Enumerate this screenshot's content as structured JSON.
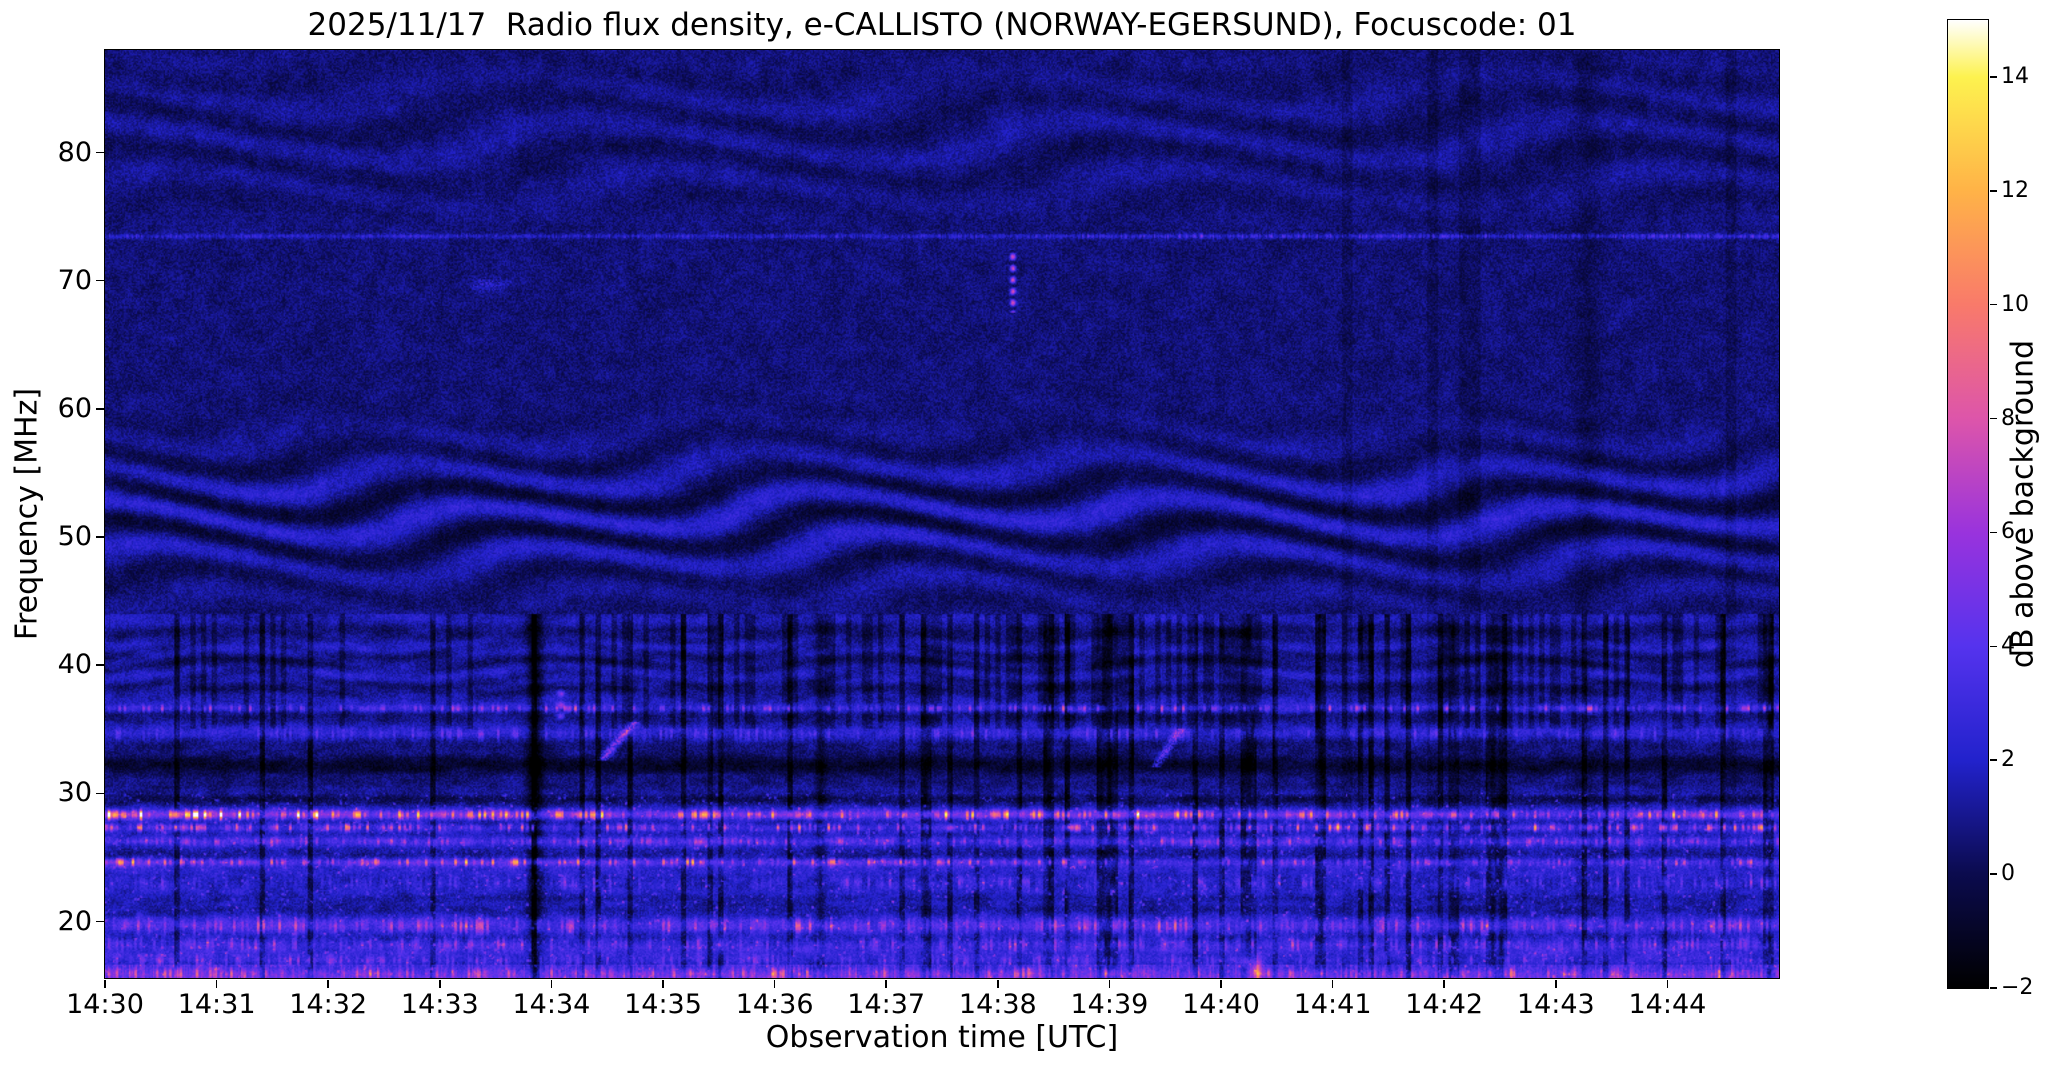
{
  "chart_data": {
    "type": "heatmap",
    "title": "2025/11/17  Radio flux density, e-CALLISTO (NORWAY-EGERSUND), Focuscode: 01",
    "xlabel": "Observation time [UTC]",
    "ylabel": "Frequency [MHz]",
    "x_ticks": [
      "14:30",
      "14:31",
      "14:32",
      "14:33",
      "14:34",
      "14:35",
      "14:36",
      "14:37",
      "14:38",
      "14:39",
      "14:40",
      "14:41",
      "14:42",
      "14:43",
      "14:44"
    ],
    "x_minutes_span": 15,
    "time_range": [
      "14:30:00",
      "14:45:00"
    ],
    "y_ticks": [
      80,
      70,
      60,
      50,
      40,
      30,
      20
    ],
    "freq_range": [
      15.6,
      88.0
    ],
    "grid": false,
    "colorbar": {
      "label": "dB above background",
      "range": [
        -2,
        15
      ],
      "ticks": [
        14,
        12,
        10,
        8,
        6,
        4,
        2,
        0,
        -2
      ],
      "tick_labels": [
        "14",
        "12",
        "10",
        "8",
        "6",
        "4",
        "2",
        "0",
        "−2"
      ]
    },
    "colormap": [
      {
        "pos": 0.0,
        "color": "#000000"
      },
      {
        "pos": 0.118,
        "color": "#0b0b4e"
      },
      {
        "pos": 0.235,
        "color": "#2222cc"
      },
      {
        "pos": 0.353,
        "color": "#5533ee"
      },
      {
        "pos": 0.47,
        "color": "#9933dd"
      },
      {
        "pos": 0.588,
        "color": "#dd55aa"
      },
      {
        "pos": 0.706,
        "color": "#f97a6a"
      },
      {
        "pos": 0.824,
        "color": "#ffb347"
      },
      {
        "pos": 0.941,
        "color": "#fdf24f"
      },
      {
        "pos": 1.0,
        "color": "#ffffff"
      }
    ],
    "background_level_db": 0.6,
    "wavy_interference_band_mhz": [
      44,
      58
    ],
    "upper_wavy_band_mhz": [
      74,
      88
    ],
    "interference_lines_mhz": [
      73.5,
      36.6,
      28.3,
      27.3,
      24.6
    ],
    "bands": [
      {
        "f": 36.6,
        "a": 3.2,
        "w": 0.28
      },
      {
        "f": 34.6,
        "a": 1.5,
        "w": 0.5
      },
      {
        "f": 28.3,
        "a": 6.0,
        "w": 0.33,
        "lf": 1
      },
      {
        "f": 27.3,
        "a": 4.5,
        "w": 0.3
      },
      {
        "f": 26.2,
        "a": 2.4,
        "w": 0.3
      },
      {
        "f": 24.6,
        "a": 4.2,
        "w": 0.28,
        "lf": 1
      },
      {
        "f": 23.0,
        "a": 1.8,
        "w": 0.5
      },
      {
        "f": 19.6,
        "a": 2.8,
        "w": 0.6
      },
      {
        "f": 18.2,
        "a": 2.2,
        "w": 0.5
      },
      {
        "f": 16.9,
        "a": 2.0,
        "w": 0.4
      },
      {
        "f": 15.9,
        "a": 2.6,
        "w": 0.45
      }
    ],
    "dark_bands": [
      {
        "f": 32.4,
        "a": 2.3,
        "w": 0.8
      },
      {
        "f": 30.7,
        "a": 1.2,
        "w": 0.5
      },
      {
        "f": 29.5,
        "a": 1.0,
        "w": 0.45
      },
      {
        "f": 21.8,
        "a": 1.0,
        "w": 0.4
      }
    ],
    "dark_columns": [
      {
        "t": 0.2565,
        "sigma": 0.0045,
        "amp": 2.6,
        "fMax": 44
      },
      {
        "t": 0.427,
        "sigma": 0.003,
        "amp": 1.5,
        "fMax": 44
      },
      {
        "t": 0.885,
        "sigma": 0.008,
        "amp": 0.55,
        "fMax": 88
      }
    ],
    "events": [
      {
        "kind": "vertical",
        "t": 0.542,
        "fLo": 67.5,
        "fHi": 72.5,
        "amp": 7.5,
        "sigmaT": 0.0016,
        "desc": "bright narrow transient near 14:38, 68-72 MHz"
      },
      {
        "kind": "vertical",
        "t": 0.272,
        "fLo": 35.5,
        "fHi": 38.5,
        "amp": 4.0,
        "sigmaT": 0.002,
        "desc": "bright spike just before 14:34 near 37 MHz"
      },
      {
        "kind": "drift",
        "tStart": 0.296,
        "fLo": 32.5,
        "fHi": 35.5,
        "driftPerMHz": 0.0065,
        "amp": 5.5,
        "sigmaT": 0.0028,
        "desc": "drifting burst chain 14:34.5, 33-35 MHz"
      },
      {
        "kind": "drift",
        "tStart": 0.627,
        "fLo": 32.0,
        "fHi": 35.0,
        "driftPerMHz": 0.005,
        "amp": 4.2,
        "sigmaT": 0.0028,
        "desc": "drifting burst chain 14:39.4, 32-35 MHz"
      },
      {
        "kind": "smear",
        "t": 0.228,
        "f": 69.8,
        "amp": 2.6,
        "sigmaT": 0.013,
        "sigmaF": 0.55,
        "desc": "faint enhancement 14:33.4 near 70 MHz"
      },
      {
        "kind": "blob",
        "t": 0.687,
        "f": 16.2,
        "amp": 6.0,
        "sigmaT": 0.004,
        "sigmaF": 0.9,
        "desc": "bright low-frequency spike 14:40.3"
      }
    ],
    "notable_features": [
      "mostly dark navy-blue background noise across 15.6-88 MHz",
      "strong wavy ionospheric interference pattern between ~44 and 58 MHz across full duration",
      "fainter wavy pattern in 74-88 MHz range",
      "persistent horizontal carrier line at ~73.5 MHz",
      "dense bright pink/orange RFI bands below 30 MHz, strongest near 27-28.5 MHz and 24.6 MHz",
      "dark absorption bands near 29.5-33 MHz",
      "many dark vertical dropout streaks below ~44 MHz, denser after 14:36",
      "bright strip along the bottom edge near 16 MHz"
    ]
  }
}
